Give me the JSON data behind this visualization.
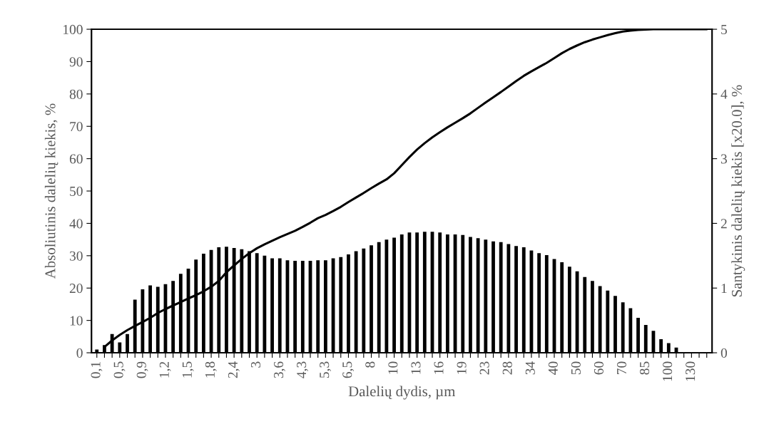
{
  "chart_data": {
    "type": "bar",
    "xlabel": "Dalelių dydis, µm",
    "ylabel": "Absoliutinis dalelių kiekis, %",
    "y2label": "Santykinis dalelių kiekis [x20.0], %",
    "categories": [
      "0,1",
      null,
      null,
      "0,5",
      null,
      null,
      "0,9",
      null,
      null,
      "1,2",
      null,
      null,
      "1,5",
      null,
      null,
      "1,8",
      null,
      null,
      "2,4",
      null,
      null,
      "3",
      null,
      null,
      "3,6",
      null,
      null,
      "4,3",
      null,
      null,
      "5,3",
      null,
      null,
      "6,5",
      null,
      null,
      "8",
      null,
      null,
      "10",
      null,
      null,
      "13",
      null,
      null,
      "16",
      null,
      null,
      "19",
      null,
      null,
      "23",
      null,
      null,
      "28",
      null,
      null,
      "34",
      null,
      null,
      "40",
      null,
      null,
      "50",
      null,
      null,
      "60",
      null,
      null,
      "70",
      null,
      null,
      "85",
      null,
      null,
      "100",
      null,
      null,
      "130",
      null,
      null
    ],
    "series": [
      {
        "axis": "y2",
        "color": "#000000",
        "values": [
          0.05,
          0.12,
          0.29,
          0.16,
          0.29,
          0.82,
          0.98,
          1.04,
          1.02,
          1.06,
          1.11,
          1.22,
          1.3,
          1.44,
          1.53,
          1.59,
          1.63,
          1.64,
          1.62,
          1.6,
          1.57,
          1.54,
          1.5,
          1.46,
          1.46,
          1.43,
          1.42,
          1.42,
          1.42,
          1.43,
          1.43,
          1.46,
          1.48,
          1.52,
          1.57,
          1.61,
          1.66,
          1.71,
          1.75,
          1.78,
          1.83,
          1.86,
          1.86,
          1.87,
          1.87,
          1.86,
          1.83,
          1.83,
          1.82,
          1.79,
          1.77,
          1.75,
          1.72,
          1.71,
          1.68,
          1.65,
          1.63,
          1.58,
          1.54,
          1.51,
          1.45,
          1.4,
          1.33,
          1.26,
          1.17,
          1.11,
          1.03,
          0.96,
          0.88,
          0.78,
          0.69,
          0.54,
          0.43,
          0.34,
          0.21,
          0.15,
          0.08,
          0,
          0,
          0,
          0
        ]
      },
      {
        "type": "line",
        "axis": "y",
        "color": "#000000",
        "values": [
          null,
          1.8,
          3.8,
          5.5,
          7,
          8.3,
          9.5,
          10.8,
          12.3,
          13.5,
          14.6,
          15.7,
          16.8,
          17.8,
          19,
          20.4,
          22.2,
          24.9,
          27,
          29,
          30.8,
          32.3,
          33.5,
          34.6,
          35.7,
          36.7,
          37.7,
          38.9,
          40.2,
          41.6,
          42.6,
          43.8,
          45.1,
          46.6,
          48.0,
          49.4,
          50.9,
          52.3,
          53.6,
          55.5,
          58,
          60.5,
          62.8,
          64.8,
          66.6,
          68.2,
          69.7,
          71.1,
          72.5,
          74.0,
          75.7,
          77.4,
          79,
          80.6,
          82.3,
          84,
          85.6,
          87,
          88.3,
          89.6,
          91.1,
          92.6,
          93.9,
          95,
          96,
          96.8,
          97.5,
          98.2,
          98.8,
          99.3,
          99.6,
          99.8,
          99.9,
          100,
          100,
          100,
          100,
          100,
          100,
          100,
          100
        ]
      }
    ],
    "ylim": [
      0,
      100
    ],
    "yticks": [
      0,
      10,
      20,
      30,
      40,
      50,
      60,
      70,
      80,
      90,
      100
    ],
    "y2lim": [
      0,
      5
    ],
    "y2ticks": [
      0,
      1,
      2,
      3,
      4,
      5
    ],
    "marker": "none",
    "line_style": "solid",
    "grid": false,
    "legend": false
  }
}
